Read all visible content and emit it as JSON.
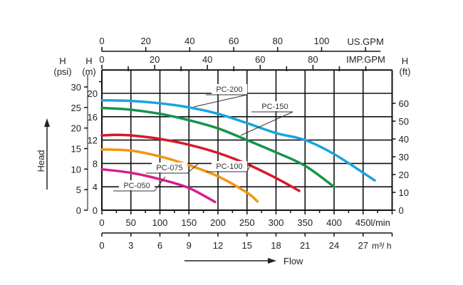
{
  "chart_data": {
    "type": "line",
    "title": "",
    "xlabel": "Flow",
    "ylabel": "Head",
    "x_unit": "l/min",
    "y_unit": "m",
    "xlim": [
      0,
      500
    ],
    "ylim": [
      0,
      24
    ],
    "grid": true,
    "axes": {
      "lmin": {
        "label": "l/min",
        "ticks": [
          0,
          50,
          100,
          150,
          200,
          250,
          300,
          350,
          400,
          450
        ]
      },
      "m3h": {
        "label": "m³/ h",
        "ticks": [
          0,
          3,
          6,
          9,
          12,
          15,
          18,
          21,
          24,
          27
        ]
      },
      "usgpm": {
        "label": "US.GPM",
        "ticks": [
          0,
          20,
          40,
          60,
          80,
          100
        ]
      },
      "impgpm": {
        "label": "IMP.GPM",
        "ticks": [
          0,
          20,
          40,
          60,
          80
        ]
      },
      "m": {
        "label_top": "H",
        "label_unit": "(m)",
        "ticks": [
          0,
          4,
          8,
          12,
          16,
          20
        ]
      },
      "psi": {
        "label_top": "H",
        "label_unit": "(psi)",
        "ticks": [
          0,
          5,
          10,
          15,
          20,
          25,
          30
        ]
      },
      "ft": {
        "label_top": "H",
        "label_unit": "(ft)",
        "ticks": [
          0,
          10,
          20,
          30,
          40,
          50,
          60
        ]
      }
    },
    "series": [
      {
        "name": "PC-200",
        "color": "#1aa3e0",
        "x": [
          0,
          50,
          100,
          150,
          200,
          250,
          300,
          350,
          400,
          470
        ],
        "y": [
          18.8,
          18.7,
          18.3,
          17.6,
          16.5,
          14.9,
          13.2,
          12.0,
          9.6,
          5.1
        ]
      },
      {
        "name": "PC-150",
        "color": "#15944a",
        "x": [
          0,
          50,
          100,
          150,
          200,
          250,
          300,
          350,
          400
        ],
        "y": [
          17.5,
          17.2,
          16.5,
          15.4,
          14.0,
          12.0,
          9.9,
          7.6,
          4.0
        ]
      },
      {
        "name": "PC-100",
        "color": "#d8182c",
        "x": [
          0,
          25,
          50,
          100,
          150,
          200,
          250,
          300,
          340
        ],
        "y": [
          12.8,
          12.9,
          12.8,
          12.2,
          11.2,
          9.8,
          7.9,
          5.5,
          3.3
        ]
      },
      {
        "name": "PC-075",
        "color": "#f0960e",
        "x": [
          0,
          50,
          100,
          150,
          200,
          250,
          268
        ],
        "y": [
          10.4,
          10.2,
          9.2,
          7.7,
          5.8,
          3.0,
          1.5
        ]
      },
      {
        "name": "PC-050",
        "color": "#d81e8c",
        "x": [
          0,
          50,
          100,
          150,
          195
        ],
        "y": [
          7.0,
          6.4,
          5.3,
          3.8,
          1.4
        ]
      }
    ]
  }
}
